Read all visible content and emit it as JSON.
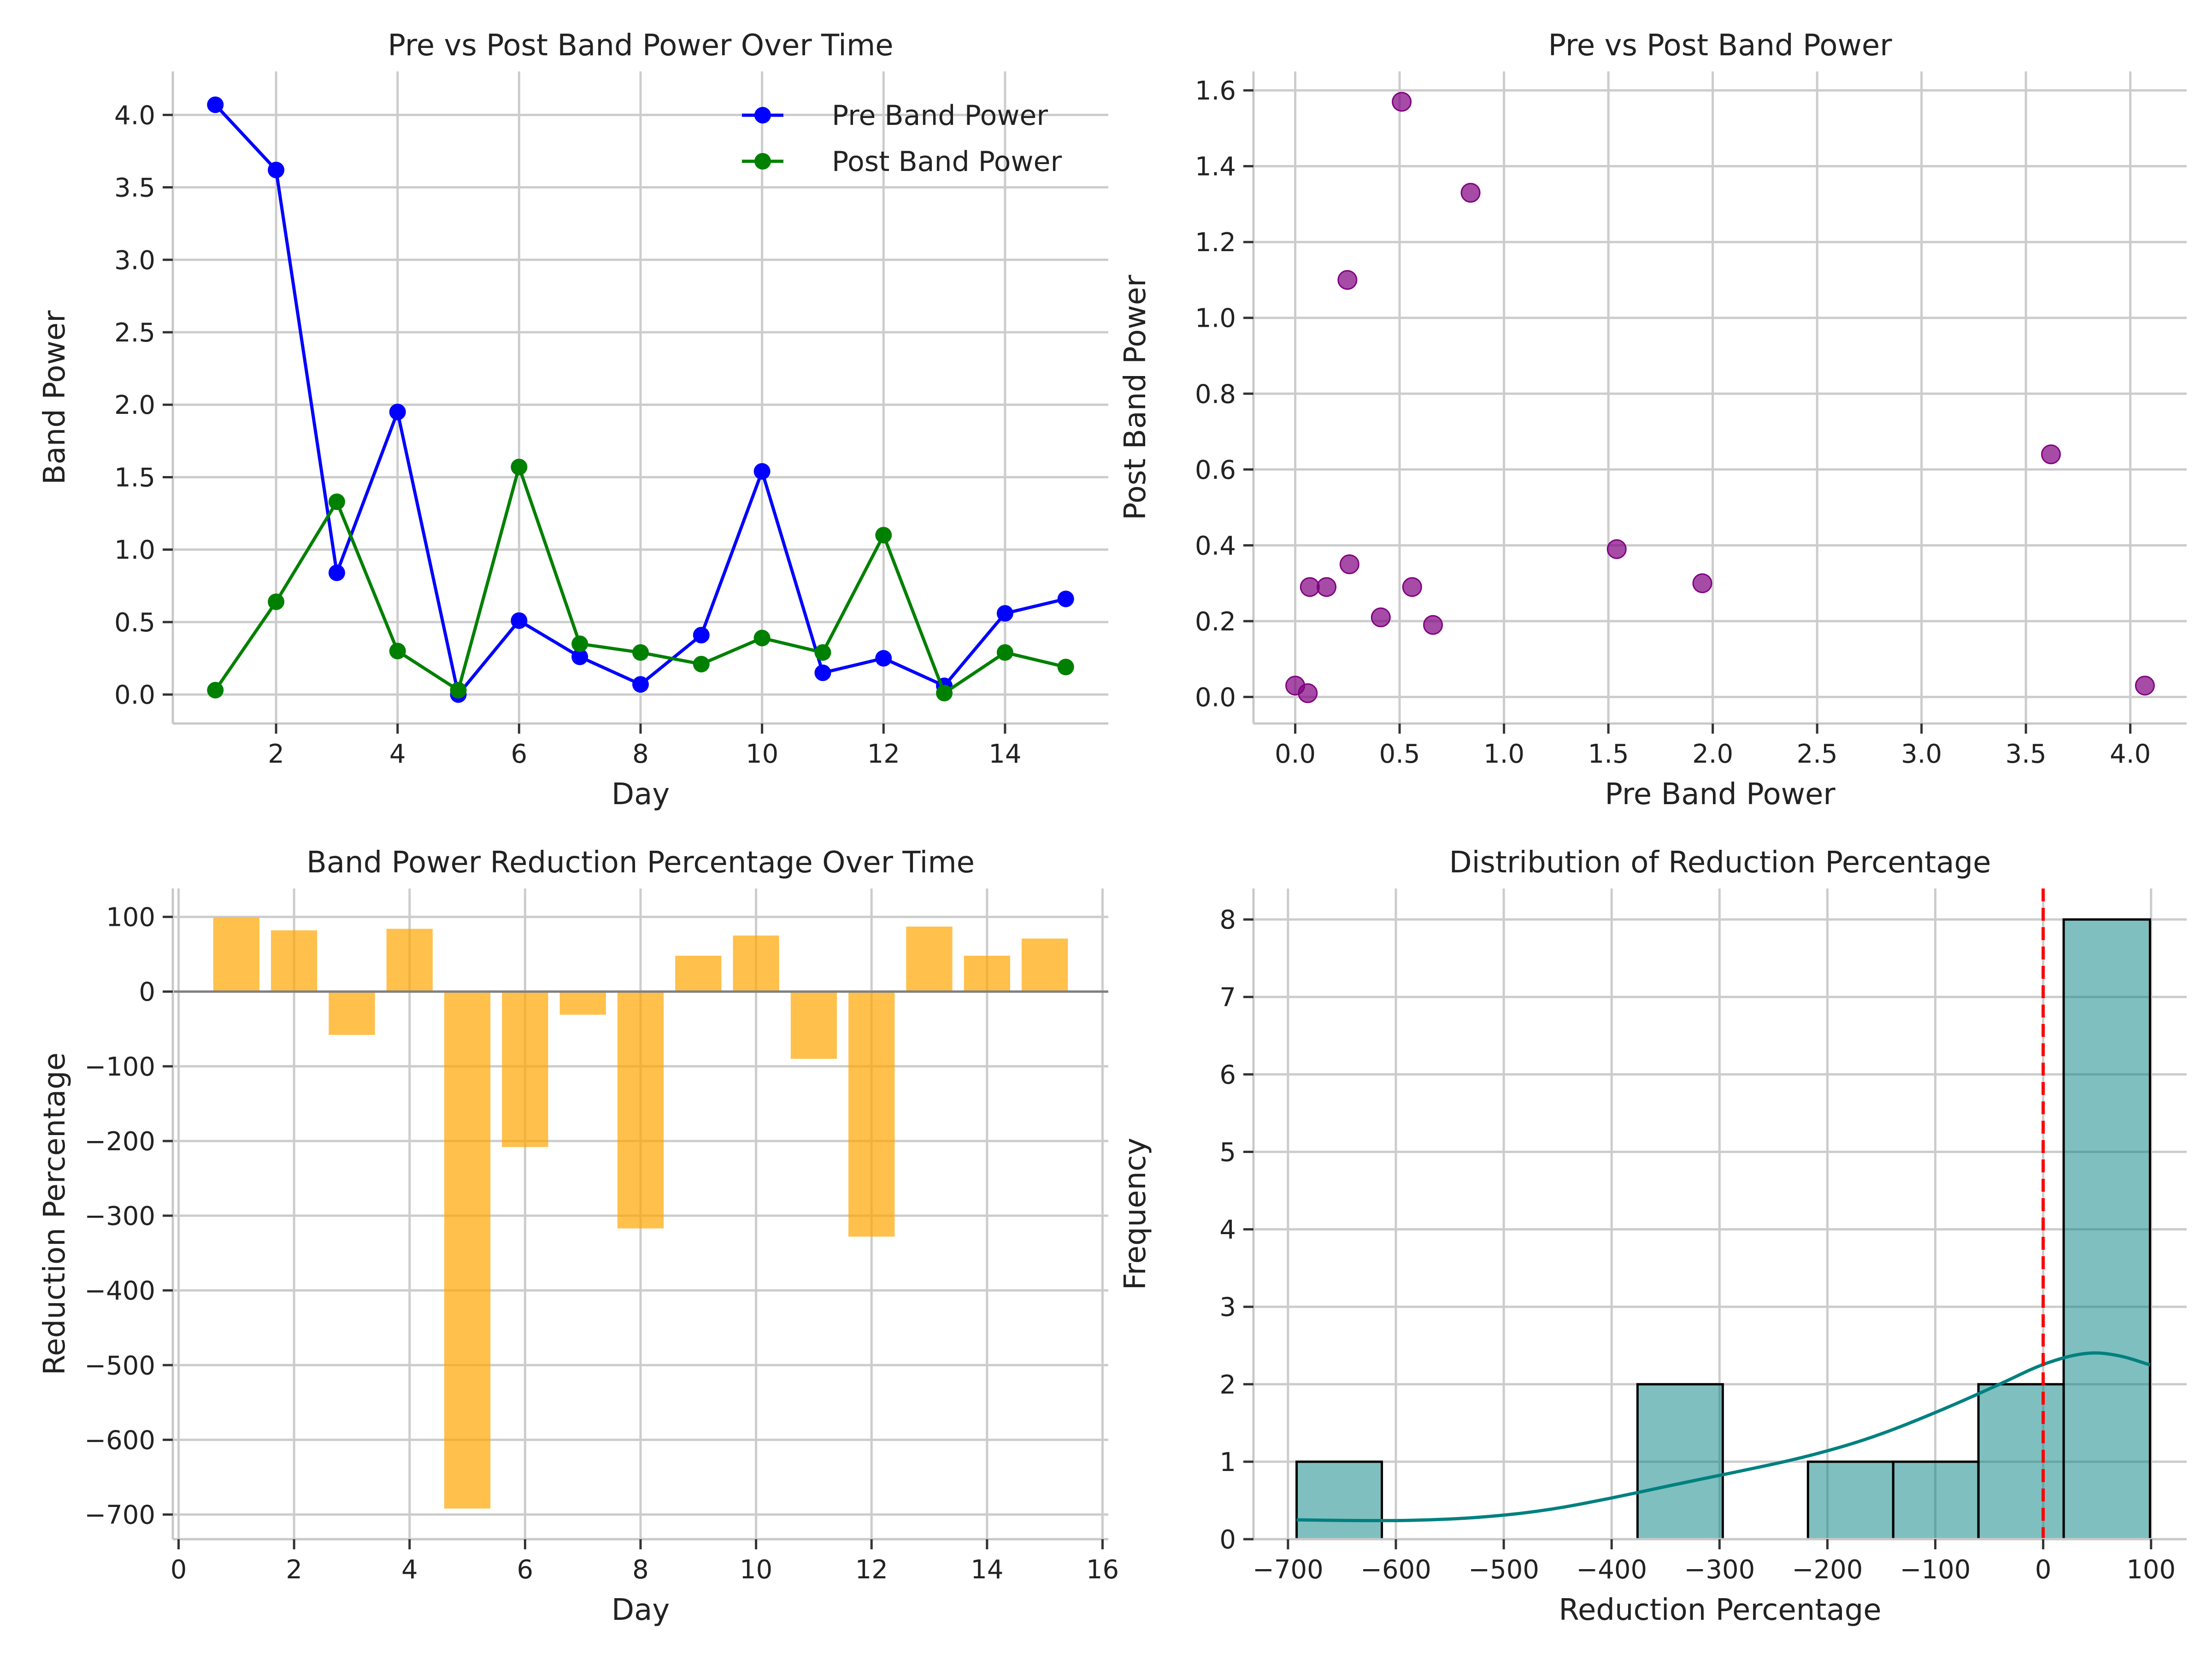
{
  "chart_data": [
    {
      "id": "line",
      "type": "line",
      "title": "Pre vs Post Band Power Over Time",
      "xlabel": "Day",
      "ylabel": "Band Power",
      "xlim": [
        0.3,
        15.7
      ],
      "ylim": [
        -0.2,
        4.3
      ],
      "xticks": [
        2,
        4,
        6,
        8,
        10,
        12,
        14
      ],
      "yticks": [
        0.0,
        0.5,
        1.0,
        1.5,
        2.0,
        2.5,
        3.0,
        3.5,
        4.0
      ],
      "ytick_labels": [
        "0.0",
        "0.5",
        "1.0",
        "1.5",
        "2.0",
        "2.5",
        "3.0",
        "3.5",
        "4.0"
      ],
      "grid": true,
      "legend": "top-right",
      "x": [
        1,
        2,
        3,
        4,
        5,
        6,
        7,
        8,
        9,
        10,
        11,
        12,
        13,
        14,
        15
      ],
      "series": [
        {
          "name": "Pre Band Power",
          "color": "#0000ff",
          "marker": "circle",
          "values": [
            4.07,
            3.62,
            0.84,
            1.95,
            0.0,
            0.51,
            0.26,
            0.07,
            0.41,
            1.54,
            0.15,
            0.25,
            0.06,
            0.56,
            0.66
          ]
        },
        {
          "name": "Post Band Power",
          "color": "#008000",
          "marker": "circle",
          "values": [
            0.03,
            0.64,
            1.33,
            0.3,
            0.03,
            1.57,
            0.35,
            0.29,
            0.21,
            0.39,
            0.29,
            1.1,
            0.01,
            0.29,
            0.19
          ]
        }
      ]
    },
    {
      "id": "scatter",
      "type": "scatter",
      "title": "Pre vs Post Band Power",
      "xlabel": "Pre Band Power",
      "ylabel": "Post Band Power",
      "xlim": [
        -0.2,
        4.27
      ],
      "ylim": [
        -0.07,
        1.65
      ],
      "xticks": [
        0.0,
        0.5,
        1.0,
        1.5,
        2.0,
        2.5,
        3.0,
        3.5,
        4.0
      ],
      "xtick_labels": [
        "0.0",
        "0.5",
        "1.0",
        "1.5",
        "2.0",
        "2.5",
        "3.0",
        "3.5",
        "4.0"
      ],
      "yticks": [
        0.0,
        0.2,
        0.4,
        0.6,
        0.8,
        1.0,
        1.2,
        1.4,
        1.6
      ],
      "ytick_labels": [
        "0.0",
        "0.2",
        "0.4",
        "0.6",
        "0.8",
        "1.0",
        "1.2",
        "1.4",
        "1.6"
      ],
      "grid": true,
      "color": "#800080",
      "points": [
        {
          "x": 4.07,
          "y": 0.03
        },
        {
          "x": 3.62,
          "y": 0.64
        },
        {
          "x": 0.84,
          "y": 1.33
        },
        {
          "x": 1.95,
          "y": 0.3
        },
        {
          "x": 0.0,
          "y": 0.03
        },
        {
          "x": 0.51,
          "y": 1.57
        },
        {
          "x": 0.26,
          "y": 0.35
        },
        {
          "x": 0.07,
          "y": 0.29
        },
        {
          "x": 0.41,
          "y": 0.21
        },
        {
          "x": 1.54,
          "y": 0.39
        },
        {
          "x": 0.15,
          "y": 0.29
        },
        {
          "x": 0.25,
          "y": 1.1
        },
        {
          "x": 0.06,
          "y": 0.01
        },
        {
          "x": 0.56,
          "y": 0.29
        },
        {
          "x": 0.66,
          "y": 0.19
        }
      ]
    },
    {
      "id": "bar",
      "type": "bar",
      "title": "Band Power Reduction Percentage Over Time",
      "xlabel": "Day",
      "ylabel": "Reduction Percentage",
      "xlim": [
        -0.1,
        16.1
      ],
      "ylim": [
        -733,
        138
      ],
      "xticks": [
        0,
        2,
        4,
        6,
        8,
        10,
        12,
        14,
        16
      ],
      "yticks": [
        100,
        0,
        -100,
        -200,
        -300,
        -400,
        -500,
        -600,
        -700
      ],
      "ytick_labels": [
        "100",
        "0",
        "−100",
        "−200",
        "−300",
        "−400",
        "−500",
        "−600",
        "−700"
      ],
      "grid": true,
      "color": "#ffa500",
      "zero_line": 0,
      "x": [
        1,
        2,
        3,
        4,
        5,
        6,
        7,
        8,
        9,
        10,
        11,
        12,
        13,
        14,
        15
      ],
      "values": [
        99,
        82,
        -58,
        84,
        -692,
        -208,
        -31,
        -317,
        48,
        75,
        -90,
        -328,
        87,
        48,
        71
      ]
    },
    {
      "id": "hist",
      "type": "histogram",
      "title": "Distribution of Reduction Percentage",
      "xlabel": "Reduction Percentage",
      "ylabel": "Frequency",
      "xlim": [
        -732,
        133
      ],
      "ylim": [
        0,
        8.4
      ],
      "xticks": [
        -700,
        -600,
        -500,
        -400,
        -300,
        -200,
        -100,
        0,
        100
      ],
      "xtick_labels": [
        "−700",
        "−600",
        "−500",
        "−400",
        "−300",
        "−200",
        "−100",
        "0",
        "100"
      ],
      "yticks": [
        0,
        1,
        2,
        3,
        4,
        5,
        6,
        7,
        8
      ],
      "grid": true,
      "bar_color": "#008080",
      "bins": [
        -692,
        -613,
        -534,
        -455,
        -376,
        -297,
        -218,
        -139,
        -60,
        19,
        99
      ],
      "counts": [
        1,
        0,
        0,
        0,
        2,
        0,
        1,
        1,
        2,
        8
      ],
      "vline": {
        "x": 0,
        "color": "#ff0000",
        "style": "dashed"
      },
      "kde": {
        "color": "#008080",
        "points": [
          [
            -692,
            0.25
          ],
          [
            -640,
            0.24
          ],
          [
            -580,
            0.24
          ],
          [
            -520,
            0.28
          ],
          [
            -460,
            0.37
          ],
          [
            -400,
            0.53
          ],
          [
            -340,
            0.71
          ],
          [
            -280,
            0.88
          ],
          [
            -220,
            1.06
          ],
          [
            -160,
            1.3
          ],
          [
            -100,
            1.63
          ],
          [
            -40,
            2.0
          ],
          [
            0,
            2.27
          ],
          [
            40,
            2.42
          ],
          [
            70,
            2.38
          ],
          [
            99,
            2.25
          ]
        ]
      }
    }
  ]
}
